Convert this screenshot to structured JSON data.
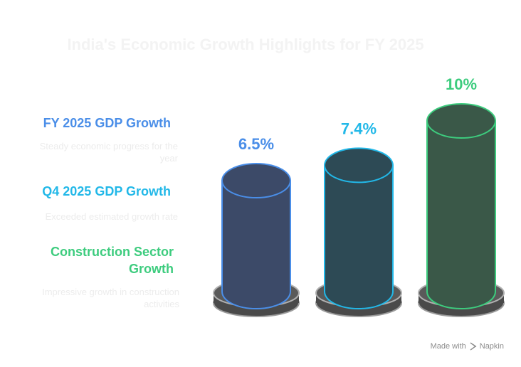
{
  "title": "India's Economic Growth Highlights for FY 2025",
  "labels": [
    {
      "title": "FY 2025 GDP Growth",
      "desc": "Steady economic progress for the year",
      "color": "#4a8ee8"
    },
    {
      "title": "Q4 2025 GDP Growth",
      "desc": "Exceeded estimated growth rate",
      "color": "#22b8e8"
    },
    {
      "title": "Construction Sector Growth",
      "desc": "Impressive growth in construction activities",
      "color": "#3dcc7e"
    }
  ],
  "chart_data": {
    "type": "bar",
    "categories": [
      "FY 2025 GDP Growth",
      "Q4 2025 GDP Growth",
      "Construction Sector Growth"
    ],
    "values": [
      6.5,
      7.4,
      10
    ],
    "value_labels": [
      "6.5%",
      "7.4%",
      "10%"
    ],
    "unit": "%",
    "colors": {
      "fill": [
        "#3c4a68",
        "#2d4a55",
        "#3a5848"
      ],
      "stroke": [
        "#4a8ee8",
        "#22b8e8",
        "#3dcc7e"
      ]
    }
  },
  "footer": {
    "made_with": "Made with",
    "brand": "Napkin"
  }
}
